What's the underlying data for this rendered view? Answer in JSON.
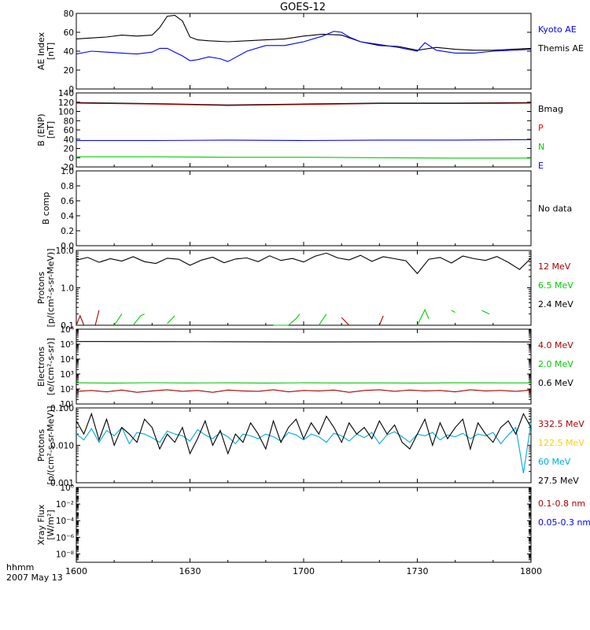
{
  "title": "GOES-12",
  "xaxis": {
    "corner_label_1": "hhmm",
    "corner_label_2": "2007 May 13",
    "tick_labels": [
      "1600",
      "1630",
      "1700",
      "1730",
      "1800"
    ],
    "range_minutes": [
      0,
      120
    ]
  },
  "chart_data": [
    {
      "type": "line",
      "name": "ae-index",
      "ylabel": [
        "AE Index",
        "[nT]"
      ],
      "ylim": [
        0,
        80
      ],
      "y_ticks": [
        0,
        20,
        40,
        60,
        80
      ],
      "y_tick_labels": [
        "0",
        "20",
        "40",
        "60",
        "80"
      ],
      "legend": [
        {
          "label": "Kyoto AE",
          "color": "#0000ff"
        },
        {
          "label": "Themis AE",
          "color": "#000000"
        }
      ],
      "series": [
        {
          "color": "#000000",
          "x": [
            0,
            4,
            8,
            12,
            16,
            20,
            22,
            24,
            26,
            28,
            30,
            32,
            35,
            40,
            45,
            50,
            55,
            60,
            65,
            70,
            75,
            80,
            85,
            90,
            95,
            100,
            105,
            110,
            115,
            120
          ],
          "y": [
            53,
            54,
            55,
            57,
            56,
            57,
            65,
            77,
            78,
            72,
            55,
            52,
            51,
            50,
            51,
            52,
            53,
            56,
            58,
            57,
            50,
            46,
            45,
            41,
            44,
            42,
            41,
            41,
            42,
            43
          ]
        },
        {
          "color": "#0000ff",
          "x": [
            0,
            4,
            8,
            12,
            16,
            20,
            22,
            24,
            26,
            28,
            30,
            32,
            35,
            38,
            40,
            45,
            50,
            55,
            60,
            65,
            68,
            70,
            72,
            75,
            80,
            85,
            90,
            92,
            95,
            100,
            105,
            110,
            115,
            120
          ],
          "y": [
            37,
            40,
            39,
            38,
            37,
            39,
            43,
            43,
            39,
            35,
            30,
            31,
            34,
            32,
            29,
            40,
            46,
            46,
            50,
            56,
            61,
            60,
            55,
            50,
            47,
            44,
            40,
            49,
            41,
            38,
            38,
            40,
            41,
            42
          ]
        }
      ]
    },
    {
      "type": "line",
      "name": "b-enp",
      "ylabel": [
        "B (ENP)",
        "[nT]"
      ],
      "ylim": [
        -20,
        140
      ],
      "y_ticks": [
        -20,
        0,
        20,
        40,
        60,
        80,
        100,
        120,
        140
      ],
      "y_tick_labels": [
        "-20",
        "0",
        "20",
        "40",
        "60",
        "80",
        "100",
        "120",
        "140"
      ],
      "legend": [
        {
          "label": "Bmag",
          "color": "#000000"
        },
        {
          "label": "P",
          "color": "#ff0000"
        },
        {
          "label": "N",
          "color": "#00cc00"
        },
        {
          "label": "E",
          "color": "#0000ff"
        }
      ],
      "series": [
        {
          "color": "#000000",
          "x": [
            0,
            20,
            40,
            60,
            80,
            100,
            120
          ],
          "y": [
            119,
            117,
            114,
            116,
            118,
            118,
            119
          ]
        },
        {
          "color": "#aa0000",
          "x": [
            0,
            20,
            40,
            60,
            80,
            100,
            120
          ],
          "y": [
            118,
            116,
            113,
            115,
            117,
            117,
            118
          ]
        },
        {
          "color": "#0000ff",
          "x": [
            0,
            20,
            40,
            60,
            80,
            100,
            120
          ],
          "y": [
            37,
            37,
            38,
            37,
            38,
            38,
            39
          ]
        },
        {
          "color": "#00cc00",
          "x": [
            0,
            20,
            40,
            60,
            80,
            100,
            120
          ],
          "y": [
            2,
            2,
            1,
            1,
            0,
            -1,
            -1
          ]
        }
      ]
    },
    {
      "type": "line",
      "name": "b-comp",
      "ylabel": [
        "B comp"
      ],
      "ylim": [
        0,
        1
      ],
      "y_ticks": [
        0,
        0.2,
        0.4,
        0.6,
        0.8,
        1.0
      ],
      "y_tick_labels": [
        "0.0",
        "0.2",
        "0.4",
        "0.6",
        "0.8",
        "1.0"
      ],
      "legend": [
        {
          "label": "No data",
          "color": "#000000"
        }
      ],
      "series": []
    },
    {
      "type": "line",
      "name": "protons-low",
      "ylabel": [
        "Protons",
        "[p/(cm²-s-sr-MeV)]"
      ],
      "log": true,
      "ylim": [
        0.1,
        10
      ],
      "y_ticks": [
        0.1,
        1,
        10
      ],
      "y_tick_labels": [
        "0.1",
        "1.0",
        "10.0"
      ],
      "legend": [
        {
          "label": "12 MeV",
          "color": "#aa0000"
        },
        {
          "label": "6.5 MeV",
          "color": "#00cc00"
        },
        {
          "label": "2.4 MeV",
          "color": "#000000"
        }
      ],
      "series": [
        {
          "color": "#000000",
          "x": [
            0,
            3,
            6,
            9,
            12,
            15,
            18,
            21,
            24,
            27,
            30,
            33,
            36,
            39,
            42,
            45,
            48,
            51,
            54,
            57,
            60,
            63,
            66,
            69,
            72,
            75,
            78,
            81,
            84,
            87,
            90,
            93,
            96,
            99,
            102,
            105,
            108,
            111,
            114,
            117,
            120
          ],
          "y": [
            5.5,
            6.5,
            4.8,
            6.0,
            5.2,
            6.8,
            5.0,
            4.5,
            6.2,
            5.8,
            4.0,
            5.5,
            6.6,
            4.7,
            5.9,
            6.3,
            5.0,
            7.2,
            5.4,
            6.1,
            4.9,
            7.0,
            8.5,
            6.3,
            5.6,
            7.4,
            5.1,
            6.8,
            6.0,
            5.3,
            2.4,
            5.8,
            6.5,
            4.6,
            7.1,
            6.0,
            5.4,
            6.9,
            4.8,
            3.1,
            6.2
          ]
        },
        {
          "color": "#00cc00",
          "x": [
            10,
            12
          ],
          "y": [
            0.1,
            0.2
          ]
        },
        {
          "color": "#00cc00",
          "x": [
            15,
            17,
            18
          ],
          "y": [
            0.1,
            0.18,
            0.2
          ]
        },
        {
          "color": "#00cc00",
          "x": [
            24,
            26
          ],
          "y": [
            0.11,
            0.18
          ]
        },
        {
          "color": "#00cc00",
          "x": [
            52,
            56,
            58,
            59
          ],
          "y": [
            0.1,
            0.1,
            0.15,
            0.2
          ]
        },
        {
          "color": "#00cc00",
          "x": [
            64,
            66
          ],
          "y": [
            0.1,
            0.2
          ]
        },
        {
          "color": "#00cc00",
          "x": [
            90,
            92,
            93
          ],
          "y": [
            0.1,
            0.26,
            0.15
          ]
        },
        {
          "color": "#00cc00",
          "x": [
            99,
            100
          ],
          "y": [
            0.25,
            0.22
          ]
        },
        {
          "color": "#00cc00",
          "x": [
            107,
            109
          ],
          "y": [
            0.25,
            0.2
          ]
        },
        {
          "color": "#aa0000",
          "x": [
            0,
            1,
            2
          ],
          "y": [
            0.1,
            0.18,
            0.1
          ]
        },
        {
          "color": "#aa0000",
          "x": [
            5,
            6
          ],
          "y": [
            0.1,
            0.25
          ]
        },
        {
          "color": "#aa0000",
          "x": [
            70,
            72
          ],
          "y": [
            0.16,
            0.1
          ]
        },
        {
          "color": "#aa0000",
          "x": [
            80,
            81
          ],
          "y": [
            0.1,
            0.18
          ]
        }
      ]
    },
    {
      "type": "line",
      "name": "electrons",
      "ylabel": [
        "Electrons",
        "[e/(cm²-s-sr)]"
      ],
      "log": true,
      "ylim": [
        10,
        1000000
      ],
      "y_ticks": [
        10,
        100,
        1000,
        10000,
        100000,
        1000000
      ],
      "y_tick_labels": [
        "10¹",
        "10²",
        "10³",
        "10⁴",
        "10⁵",
        "10⁶"
      ],
      "legend": [
        {
          "label": "4.0 MeV",
          "color": "#aa0000"
        },
        {
          "label": "2.0 MeV",
          "color": "#00cc00"
        },
        {
          "label": "0.6 MeV",
          "color": "#000000"
        }
      ],
      "series": [
        {
          "color": "#000000",
          "x": [
            0,
            20,
            40,
            60,
            80,
            100,
            120
          ],
          "y": [
            150000,
            148000,
            145000,
            140000,
            142000,
            146000,
            140000
          ]
        },
        {
          "color": "#00cc00",
          "x": [
            0,
            10,
            20,
            30,
            40,
            50,
            60,
            70,
            80,
            90,
            100,
            110,
            120
          ],
          "y": [
            260,
            250,
            265,
            255,
            260,
            250,
            262,
            255,
            258,
            252,
            260,
            256,
            258
          ]
        },
        {
          "color": "#aa0000",
          "x": [
            0,
            4,
            8,
            12,
            16,
            20,
            24,
            28,
            32,
            36,
            40,
            44,
            48,
            52,
            56,
            60,
            64,
            68,
            72,
            76,
            80,
            84,
            88,
            92,
            96,
            100,
            104,
            108,
            112,
            116,
            120
          ],
          "y": [
            70,
            80,
            65,
            85,
            60,
            75,
            90,
            70,
            80,
            60,
            85,
            75,
            70,
            90,
            65,
            80,
            75,
            85,
            60,
            80,
            90,
            70,
            85,
            75,
            80,
            65,
            90,
            75,
            80,
            70,
            85
          ]
        }
      ]
    },
    {
      "type": "line",
      "name": "protons-high",
      "ylabel": [
        "Protons",
        "[p/(cm²-s-sr-MeV)]"
      ],
      "log": true,
      "ylim": [
        0.001,
        0.1
      ],
      "y_ticks": [
        0.001,
        0.01,
        0.1
      ],
      "y_tick_labels": [
        "0.001",
        "0.010",
        "0.100"
      ],
      "legend": [
        {
          "label": "332.5 MeV",
          "color": "#aa0000"
        },
        {
          "label": "122.5 MeV",
          "color": "#ffcc00"
        },
        {
          "label": "60 MeV",
          "color": "#00aadd"
        },
        {
          "label": "27.5 MeV",
          "color": "#000000"
        }
      ],
      "series": [
        {
          "color": "#00aadd",
          "x": [
            0,
            2,
            4,
            6,
            8,
            10,
            12,
            14,
            16,
            18,
            20,
            22,
            24,
            26,
            28,
            30,
            32,
            34,
            36,
            38,
            40,
            42,
            44,
            46,
            48,
            50,
            52,
            54,
            56,
            58,
            60,
            62,
            64,
            66,
            68,
            70,
            72,
            74,
            76,
            78,
            80,
            82,
            84,
            86,
            88,
            90,
            92,
            94,
            96,
            98,
            100,
            102,
            104,
            106,
            108,
            110,
            112,
            114,
            116,
            118,
            120
          ],
          "y": [
            0.02,
            0.014,
            0.028,
            0.012,
            0.025,
            0.018,
            0.03,
            0.011,
            0.022,
            0.02,
            0.016,
            0.012,
            0.024,
            0.02,
            0.018,
            0.013,
            0.026,
            0.019,
            0.015,
            0.022,
            0.017,
            0.011,
            0.02,
            0.018,
            0.015,
            0.02,
            0.017,
            0.013,
            0.022,
            0.019,
            0.014,
            0.02,
            0.017,
            0.012,
            0.021,
            0.018,
            0.013,
            0.02,
            0.016,
            0.022,
            0.011,
            0.019,
            0.023,
            0.017,
            0.012,
            0.02,
            0.018,
            0.022,
            0.014,
            0.019,
            0.017,
            0.021,
            0.015,
            0.02,
            0.018,
            0.022,
            0.011,
            0.019,
            0.03,
            0.0018,
            0.04
          ]
        },
        {
          "color": "#000000",
          "x": [
            0,
            2,
            4,
            6,
            8,
            10,
            12,
            14,
            16,
            18,
            20,
            22,
            24,
            26,
            28,
            30,
            32,
            34,
            36,
            38,
            40,
            42,
            44,
            46,
            48,
            50,
            52,
            54,
            56,
            58,
            60,
            62,
            64,
            66,
            68,
            70,
            72,
            74,
            76,
            78,
            80,
            82,
            84,
            86,
            88,
            90,
            92,
            94,
            96,
            98,
            100,
            102,
            104,
            106,
            108,
            110,
            112,
            114,
            116,
            118,
            120
          ],
          "y": [
            0.045,
            0.02,
            0.07,
            0.014,
            0.05,
            0.01,
            0.03,
            0.02,
            0.012,
            0.05,
            0.03,
            0.008,
            0.02,
            0.012,
            0.03,
            0.006,
            0.015,
            0.045,
            0.01,
            0.025,
            0.006,
            0.02,
            0.012,
            0.04,
            0.02,
            0.008,
            0.045,
            0.012,
            0.03,
            0.05,
            0.015,
            0.04,
            0.02,
            0.06,
            0.03,
            0.012,
            0.04,
            0.02,
            0.03,
            0.015,
            0.045,
            0.02,
            0.035,
            0.012,
            0.008,
            0.02,
            0.05,
            0.01,
            0.04,
            0.015,
            0.03,
            0.05,
            0.008,
            0.04,
            0.02,
            0.012,
            0.03,
            0.045,
            0.02,
            0.07,
            0.03
          ]
        }
      ]
    },
    {
      "type": "line",
      "name": "xray-flux",
      "ylabel": [
        "Xray Flux",
        "[W/m²]"
      ],
      "log": true,
      "ylim": [
        1e-09,
        1
      ],
      "y_ticks": [
        1e-08,
        1e-06,
        0.0001,
        0.01,
        1
      ],
      "y_tick_labels": [
        "10⁻⁸",
        "10⁻⁶",
        "10⁻⁴",
        "10⁻²",
        "10⁰"
      ],
      "legend": [
        {
          "label": "0.1-0.8 nm",
          "color": "#aa0000"
        },
        {
          "label": "0.05-0.3 nm",
          "color": "#0000ff"
        }
      ],
      "series": []
    }
  ]
}
